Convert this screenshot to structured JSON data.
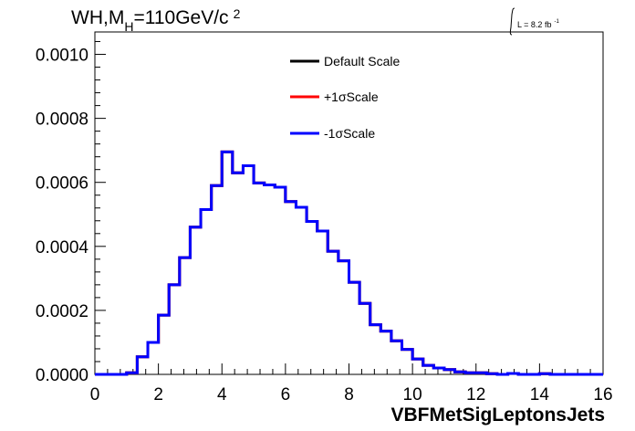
{
  "chart_data": {
    "type": "line",
    "title_parts": {
      "main": "WH,M",
      "sub": "H",
      "rest": "=110GeV/c",
      "sup": "2"
    },
    "luminosity": {
      "text": "L = 8.2 fb",
      "sup": "-1"
    },
    "xlabel": "VBFMetSigLeptonsJets",
    "ylabel": "",
    "xlim": [
      0,
      16
    ],
    "ylim": [
      0,
      0.00107
    ],
    "x_ticks": [
      "0",
      "2",
      "4",
      "6",
      "8",
      "10",
      "12",
      "14",
      "16"
    ],
    "y_ticks": [
      "0.0000",
      "0.0002",
      "0.0004",
      "0.0006",
      "0.0008",
      "0.0010"
    ],
    "bin_width": 0.3333,
    "bin_low_edges": [
      0,
      0.333,
      0.667,
      1.0,
      1.333,
      1.667,
      2.0,
      2.333,
      2.667,
      3.0,
      3.333,
      3.667,
      4.0,
      4.333,
      4.667,
      5.0,
      5.333,
      5.667,
      6.0,
      6.333,
      6.667,
      7.0,
      7.333,
      7.667,
      8.0,
      8.333,
      8.667,
      9.0,
      9.333,
      9.667,
      10.0,
      10.333,
      10.667,
      11.0,
      11.333,
      11.667,
      12.0,
      12.333,
      12.667,
      13.0,
      13.333,
      13.667,
      14.0,
      14.333,
      14.667,
      15.0,
      15.333,
      15.667
    ],
    "series": [
      {
        "name": "Default Scale",
        "color": "#000000",
        "values": [
          0,
          0,
          0,
          5e-06,
          5.5e-05,
          0.0001,
          0.000185,
          0.00028,
          0.000365,
          0.00046,
          0.000515,
          0.00059,
          0.000695,
          0.00063,
          0.000652,
          0.000598,
          0.000592,
          0.000585,
          0.00054,
          0.000522,
          0.000478,
          0.000448,
          0.000385,
          0.000355,
          0.000288,
          0.000222,
          0.000155,
          0.000135,
          0.000105,
          7.8e-05,
          4.8e-05,
          2.8e-05,
          2e-05,
          1.5e-05,
          8e-06,
          5e-06,
          5e-06,
          2e-06,
          0,
          3e-06,
          0,
          0,
          2e-06,
          0,
          0,
          0,
          0,
          0
        ]
      },
      {
        "name": "+1σScale",
        "color": "#ff0000",
        "values": [
          0,
          0,
          0,
          5e-06,
          5.5e-05,
          0.0001,
          0.000185,
          0.00028,
          0.000365,
          0.00046,
          0.000515,
          0.00059,
          0.000695,
          0.00063,
          0.000652,
          0.000598,
          0.000592,
          0.000585,
          0.00054,
          0.000522,
          0.000478,
          0.000448,
          0.000385,
          0.000355,
          0.000288,
          0.000222,
          0.000155,
          0.000135,
          0.000105,
          7.8e-05,
          4.8e-05,
          2.8e-05,
          2e-05,
          1.5e-05,
          8e-06,
          5e-06,
          5e-06,
          2e-06,
          0,
          3e-06,
          0,
          0,
          2e-06,
          0,
          0,
          0,
          0,
          0
        ]
      },
      {
        "name": "-1σScale",
        "color": "#0000ff",
        "values": [
          0,
          0,
          0,
          5e-06,
          5.5e-05,
          0.0001,
          0.000185,
          0.00028,
          0.000365,
          0.00046,
          0.000515,
          0.00059,
          0.000695,
          0.00063,
          0.000652,
          0.000598,
          0.000592,
          0.000585,
          0.00054,
          0.000522,
          0.000478,
          0.000448,
          0.000385,
          0.000355,
          0.000288,
          0.000222,
          0.000155,
          0.000135,
          0.000105,
          7.8e-05,
          4.8e-05,
          2.8e-05,
          2e-05,
          1.5e-05,
          8e-06,
          5e-06,
          5e-06,
          2e-06,
          0,
          3e-06,
          0,
          0,
          2e-06,
          0,
          0,
          0,
          0,
          0
        ]
      }
    ],
    "legend_position": "top-right",
    "grid": false
  }
}
